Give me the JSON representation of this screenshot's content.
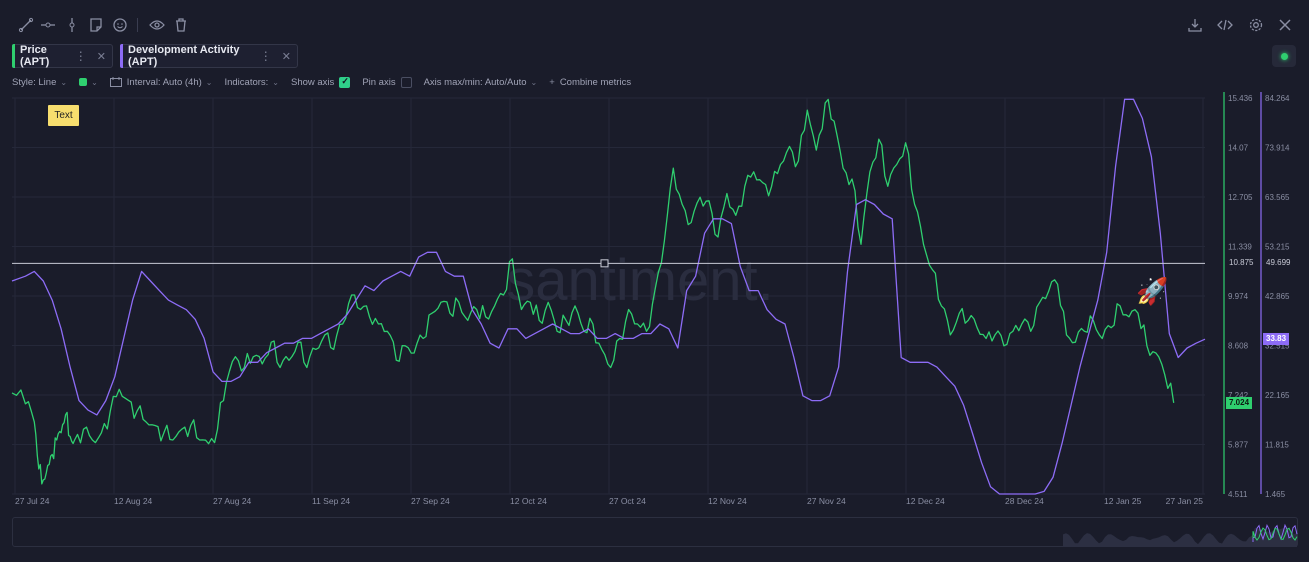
{
  "toolbar": {
    "left_icons": [
      "line-draw-icon",
      "horizontal-ray-icon",
      "vertical-line-icon",
      "note-icon",
      "emoji-icon",
      "eye-icon",
      "trash-icon"
    ],
    "right_icons": [
      "download-icon",
      "embed-code-icon",
      "settings-gear-icon",
      "close-icon"
    ]
  },
  "metrics": [
    {
      "label": "Price (APT)",
      "color": "#2fcf6f"
    },
    {
      "label": "Development Activity (APT)",
      "color": "#8d6cf6"
    }
  ],
  "settings": {
    "style": "Style: Line",
    "interval": "Interval: Auto (4h)",
    "indicators": "Indicators:",
    "show_axis": "Show axis",
    "pin_axis": "Pin axis",
    "axis_maxmin": "Axis max/min: Auto/Auto",
    "combine": "Combine metrics"
  },
  "annotation": {
    "text": "Text"
  },
  "watermark": "santiment.",
  "chart_data": {
    "type": "line",
    "x_ticks": [
      "27 Jul 24",
      "12 Aug 24",
      "27 Aug 24",
      "11 Sep 24",
      "27 Sep 24",
      "12 Oct 24",
      "27 Oct 24",
      "12 Nov 24",
      "27 Nov 24",
      "12 Dec 24",
      "28 Dec 24",
      "12 Jan 25",
      "27 Jan 25"
    ],
    "price_axis": {
      "ticks": [
        "15.436",
        "14.07",
        "12.705",
        "11.339",
        "9.974",
        "8.608",
        "7.242",
        "5.877",
        "4.511"
      ],
      "min": 4.511,
      "max": 15.436
    },
    "dev_axis": {
      "ticks": [
        "84.264",
        "73.914",
        "63.565",
        "53.215",
        "42.865",
        "32.515",
        "22.165",
        "11.815",
        "1.465"
      ],
      "min": 1.465,
      "max": 84.264
    },
    "horizontal_line": {
      "value": "10.875",
      "dev_value": "49.699"
    },
    "last_price": "7.024",
    "last_dev": "33.83",
    "series": [
      {
        "name": "Price (APT)",
        "color": "#2fcf6f",
        "axis": "price",
        "points": [
          [
            0,
            7.3
          ],
          [
            3,
            7.0
          ],
          [
            5,
            6.5
          ],
          [
            6,
            5.2
          ],
          [
            7,
            4.9
          ],
          [
            8,
            5.3
          ],
          [
            9,
            5.6
          ],
          [
            10,
            6.0
          ],
          [
            11,
            6.2
          ],
          [
            12,
            6.7
          ],
          [
            13,
            6.1
          ],
          [
            14,
            6.0
          ],
          [
            16,
            6.3
          ],
          [
            18,
            6.0
          ],
          [
            20,
            6.2
          ],
          [
            22,
            6.8
          ],
          [
            24,
            7.4
          ],
          [
            26,
            7.1
          ],
          [
            28,
            6.8
          ],
          [
            30,
            6.5
          ],
          [
            32,
            6.4
          ],
          [
            34,
            6.2
          ],
          [
            36,
            6.0
          ],
          [
            38,
            6.3
          ],
          [
            40,
            6.4
          ],
          [
            42,
            6.0
          ],
          [
            44,
            5.9
          ],
          [
            46,
            6.3
          ],
          [
            48,
            7.6
          ],
          [
            50,
            8.3
          ],
          [
            52,
            8.0
          ],
          [
            54,
            8.3
          ],
          [
            56,
            8.1
          ],
          [
            58,
            8.7
          ],
          [
            60,
            8.0
          ],
          [
            62,
            8.2
          ],
          [
            64,
            8.7
          ],
          [
            66,
            8.0
          ],
          [
            68,
            8.5
          ],
          [
            70,
            8.9
          ],
          [
            72,
            8.5
          ],
          [
            74,
            9.2
          ],
          [
            76,
            10.0
          ],
          [
            78,
            9.6
          ],
          [
            80,
            9.4
          ],
          [
            82,
            9.2
          ],
          [
            84,
            9.0
          ],
          [
            86,
            8.2
          ],
          [
            88,
            8.6
          ],
          [
            90,
            8.4
          ],
          [
            92,
            8.8
          ],
          [
            94,
            9.5
          ],
          [
            96,
            9.8
          ],
          [
            98,
            9.5
          ],
          [
            100,
            9.8
          ],
          [
            102,
            9.3
          ],
          [
            104,
            9.6
          ],
          [
            106,
            9.4
          ],
          [
            108,
            9.7
          ],
          [
            110,
            10.0
          ],
          [
            112,
            11.0
          ],
          [
            114,
            9.6
          ],
          [
            116,
            9.8
          ],
          [
            118,
            9.3
          ],
          [
            120,
            9.8
          ],
          [
            122,
            9.0
          ],
          [
            124,
            9.3
          ],
          [
            126,
            9.7
          ],
          [
            128,
            9.0
          ],
          [
            130,
            9.2
          ],
          [
            132,
            8.5
          ],
          [
            134,
            8.0
          ],
          [
            136,
            8.8
          ],
          [
            138,
            9.6
          ],
          [
            140,
            9.2
          ],
          [
            142,
            9.0
          ],
          [
            144,
            10.2
          ],
          [
            146,
            11.5
          ],
          [
            148,
            13.5
          ],
          [
            150,
            12.5
          ],
          [
            152,
            12.0
          ],
          [
            154,
            12.7
          ],
          [
            156,
            12.6
          ],
          [
            158,
            11.6
          ],
          [
            160,
            12.8
          ],
          [
            162,
            12.2
          ],
          [
            164,
            13.0
          ],
          [
            166,
            13.4
          ],
          [
            168,
            13.1
          ],
          [
            170,
            13.0
          ],
          [
            172,
            13.6
          ],
          [
            174,
            14.1
          ],
          [
            176,
            13.7
          ],
          [
            178,
            15.1
          ],
          [
            180,
            14.0
          ],
          [
            182,
            15.3
          ],
          [
            184,
            14.8
          ],
          [
            186,
            13.5
          ],
          [
            188,
            13.2
          ],
          [
            190,
            11.4
          ],
          [
            192,
            13.4
          ],
          [
            194,
            14.3
          ],
          [
            196,
            13.0
          ],
          [
            198,
            13.6
          ],
          [
            200,
            14.2
          ],
          [
            202,
            12.5
          ],
          [
            204,
            11.4
          ],
          [
            206,
            10.7
          ],
          [
            208,
            9.7
          ],
          [
            210,
            8.9
          ],
          [
            212,
            9.5
          ],
          [
            214,
            9.3
          ],
          [
            216,
            9.1
          ],
          [
            218,
            8.8
          ],
          [
            220,
            8.9
          ],
          [
            222,
            8.6
          ],
          [
            224,
            9.0
          ],
          [
            226,
            9.2
          ],
          [
            228,
            9.0
          ],
          [
            230,
            9.8
          ],
          [
            232,
            10.1
          ],
          [
            234,
            10.3
          ],
          [
            236,
            8.9
          ],
          [
            238,
            8.7
          ],
          [
            240,
            9.0
          ],
          [
            242,
            9.3
          ],
          [
            244,
            8.8
          ],
          [
            246,
            9.1
          ],
          [
            248,
            9.7
          ],
          [
            250,
            9.4
          ],
          [
            252,
            9.5
          ],
          [
            254,
            8.6
          ],
          [
            256,
            8.4
          ],
          [
            258,
            7.8
          ],
          [
            260,
            7.024
          ]
        ]
      },
      {
        "name": "Development Activity (APT)",
        "color": "#8d6cf6",
        "axis": "dev",
        "points": [
          [
            0,
            46
          ],
          [
            3,
            47
          ],
          [
            5,
            48
          ],
          [
            7,
            46
          ],
          [
            9,
            42
          ],
          [
            11,
            36
          ],
          [
            13,
            28
          ],
          [
            15,
            21
          ],
          [
            17,
            19
          ],
          [
            19,
            18
          ],
          [
            21,
            21
          ],
          [
            23,
            26
          ],
          [
            25,
            34
          ],
          [
            27,
            42
          ],
          [
            29,
            48
          ],
          [
            31,
            46
          ],
          [
            33,
            44
          ],
          [
            35,
            42
          ],
          [
            37,
            41
          ],
          [
            39,
            40
          ],
          [
            41,
            38
          ],
          [
            43,
            34
          ],
          [
            45,
            27
          ],
          [
            47,
            25
          ],
          [
            49,
            25
          ],
          [
            51,
            26
          ],
          [
            53,
            29
          ],
          [
            55,
            29
          ],
          [
            57,
            31
          ],
          [
            59,
            32
          ],
          [
            61,
            33
          ],
          [
            63,
            33
          ],
          [
            65,
            34
          ],
          [
            67,
            34
          ],
          [
            69,
            35
          ],
          [
            71,
            36
          ],
          [
            73,
            37
          ],
          [
            75,
            39
          ],
          [
            77,
            42
          ],
          [
            79,
            45
          ],
          [
            81,
            44
          ],
          [
            83,
            46
          ],
          [
            85,
            47
          ],
          [
            87,
            48
          ],
          [
            89,
            47
          ],
          [
            91,
            51
          ],
          [
            93,
            52
          ],
          [
            95,
            52
          ],
          [
            97,
            48
          ],
          [
            99,
            47
          ],
          [
            101,
            47
          ],
          [
            103,
            40
          ],
          [
            105,
            37
          ],
          [
            107,
            33
          ],
          [
            109,
            32
          ],
          [
            111,
            36
          ],
          [
            113,
            36
          ],
          [
            115,
            34
          ],
          [
            117,
            35
          ],
          [
            119,
            36
          ],
          [
            121,
            37
          ],
          [
            123,
            36
          ],
          [
            125,
            35
          ],
          [
            127,
            35
          ],
          [
            129,
            36
          ],
          [
            131,
            34
          ],
          [
            133,
            34
          ],
          [
            135,
            35
          ],
          [
            137,
            34
          ],
          [
            139,
            34
          ],
          [
            141,
            35
          ],
          [
            143,
            35
          ],
          [
            145,
            37
          ],
          [
            147,
            36
          ],
          [
            149,
            32
          ],
          [
            151,
            44
          ],
          [
            153,
            47
          ],
          [
            155,
            56
          ],
          [
            157,
            59
          ],
          [
            159,
            59
          ],
          [
            161,
            58
          ],
          [
            163,
            49
          ],
          [
            165,
            44
          ],
          [
            167,
            44
          ],
          [
            169,
            40
          ],
          [
            171,
            38
          ],
          [
            173,
            37
          ],
          [
            175,
            30
          ],
          [
            177,
            22
          ],
          [
            179,
            21
          ],
          [
            181,
            21
          ],
          [
            183,
            22
          ],
          [
            185,
            28
          ],
          [
            187,
            48
          ],
          [
            189,
            62
          ],
          [
            191,
            63
          ],
          [
            193,
            62
          ],
          [
            195,
            60
          ],
          [
            197,
            59
          ],
          [
            199,
            30
          ],
          [
            201,
            29
          ],
          [
            203,
            29
          ],
          [
            205,
            29
          ],
          [
            207,
            28
          ],
          [
            209,
            26
          ],
          [
            211,
            24
          ],
          [
            213,
            20
          ],
          [
            215,
            14
          ],
          [
            217,
            8
          ],
          [
            219,
            3
          ],
          [
            221,
            1.465
          ],
          [
            225,
            1.465
          ],
          [
            229,
            1.465
          ],
          [
            231,
            2
          ],
          [
            233,
            5
          ],
          [
            235,
            12
          ],
          [
            237,
            20
          ],
          [
            239,
            28
          ],
          [
            241,
            35
          ],
          [
            243,
            42
          ],
          [
            245,
            52
          ],
          [
            247,
            70
          ],
          [
            249,
            84
          ],
          [
            251,
            84
          ],
          [
            253,
            80
          ],
          [
            255,
            72
          ],
          [
            257,
            56
          ],
          [
            259,
            35
          ],
          [
            261,
            30
          ],
          [
            263,
            32
          ],
          [
            265,
            33
          ],
          [
            267,
            33.83
          ]
        ]
      }
    ]
  }
}
